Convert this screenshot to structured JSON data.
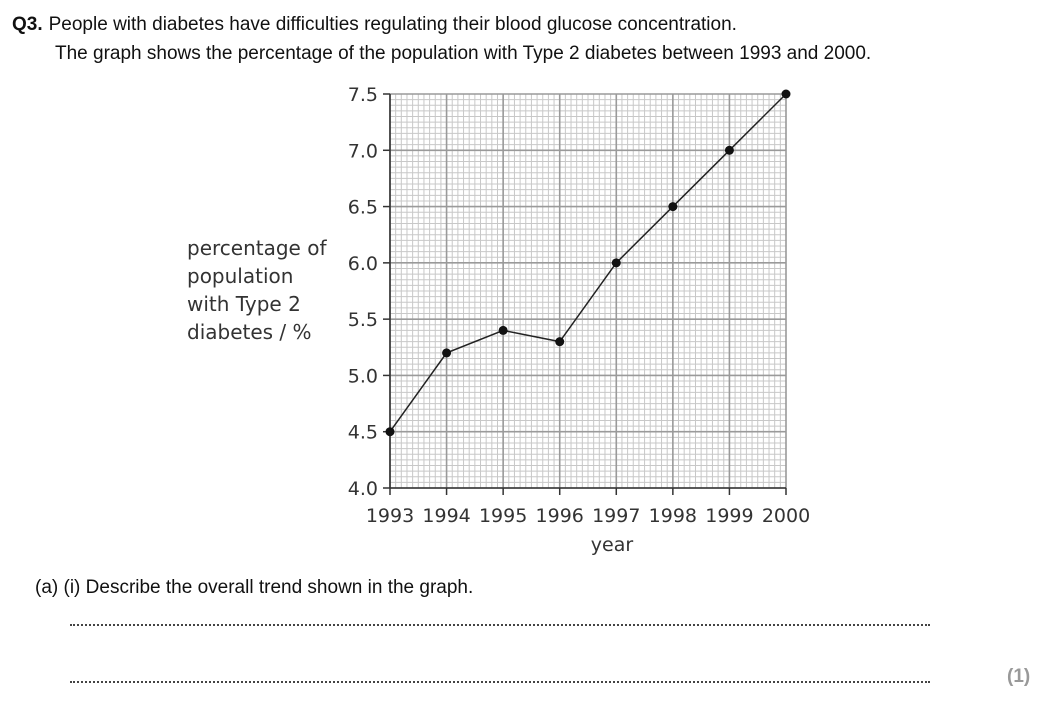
{
  "question": {
    "number": "Q3.",
    "line1": "People with diabetes have difficulties regulating their blood glucose concentration.",
    "line2": "The graph shows the percentage of the population with Type 2 diabetes between 1993 and 2000."
  },
  "chart_data": {
    "type": "line",
    "x": [
      1993,
      1994,
      1995,
      1996,
      1997,
      1998,
      1999,
      2000
    ],
    "y": [
      4.5,
      5.2,
      5.4,
      5.3,
      6.0,
      6.5,
      7.0,
      7.5
    ],
    "xlabel": "year",
    "ylabel_lines": [
      "percentage of",
      "population",
      "with Type 2",
      "diabetes / %"
    ],
    "x_ticks": [
      "1993",
      "1994",
      "1995",
      "1996",
      "1997",
      "1998",
      "1999",
      "2000"
    ],
    "y_ticks": [
      "4.0",
      "4.5",
      "5.0",
      "5.5",
      "6.0",
      "6.5",
      "7.0",
      "7.5"
    ],
    "xlim": [
      1993,
      2000
    ],
    "ylim": [
      4.0,
      7.5
    ],
    "grid": true
  },
  "part_a": {
    "text": "(a) (i) Describe the overall trend shown in the graph.",
    "marks": "(1)"
  }
}
